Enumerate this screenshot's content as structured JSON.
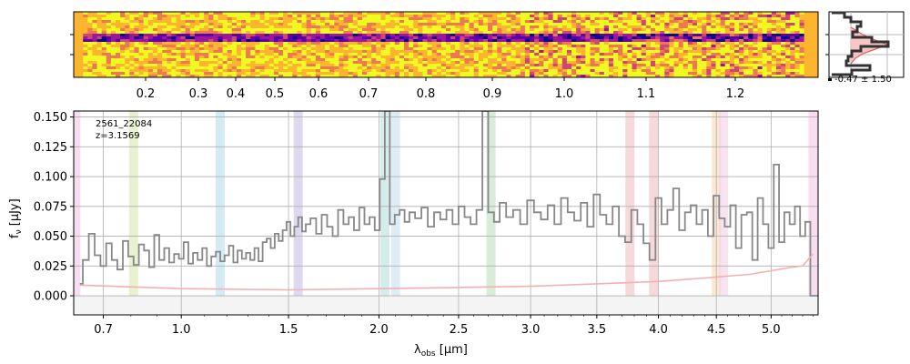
{
  "chart_data": [
    {
      "type": "heatmap",
      "panel": "2d-spectrum",
      "top_tick_labels": [
        "0.2",
        "0.3",
        "0.4",
        "0.5",
        "0.6",
        "0.7",
        "0.8",
        "0.9",
        "1.0",
        "1.1",
        "1.2"
      ],
      "colormap": "plasma",
      "trace_rows": [
        37,
        47
      ]
    },
    {
      "type": "line",
      "panel": "profile",
      "annotation": "-0.47 ± 1.50",
      "colors": {
        "profile": "#333333",
        "model": "#e06060",
        "fill": "#f6b8b8"
      }
    },
    {
      "type": "line",
      "panel": "1d-spectrum",
      "xlabel_main": "λ",
      "xlabel_sub": "obs",
      "xlabel_unit": " [μm]",
      "ylabel_main": "f",
      "ylabel_sub": "ν",
      "ylabel_unit": " [μJy]",
      "xlim": [
        0.6,
        5.45
      ],
      "ylim": [
        -0.016,
        0.155
      ],
      "xscale": "sqrt",
      "x_ticks": [
        0.7,
        1.0,
        1.5,
        2.0,
        2.5,
        3.0,
        3.5,
        4.0,
        4.5,
        5.0
      ],
      "x_tick_labels": [
        "0.7",
        "1.0",
        "1.5",
        "2.0",
        "2.5",
        "3.0",
        "3.5",
        "4.0",
        "4.5",
        "5.0"
      ],
      "y_ticks": [
        0.0,
        0.025,
        0.05,
        0.075,
        0.1,
        0.125,
        0.15
      ],
      "y_tick_labels": [
        "0.000",
        "0.025",
        "0.050",
        "0.075",
        "0.100",
        "0.125",
        "0.150"
      ],
      "annotation_id": "2561_22084",
      "annotation_z": "z=3.1569",
      "grid": true,
      "line_bands": [
        {
          "x": 0.607,
          "color": "#f2c8e8"
        },
        {
          "x": 0.81,
          "color": "#d9e8b0"
        },
        {
          "x": 1.17,
          "color": "#b8def0"
        },
        {
          "x": 1.55,
          "color": "#c8c0e8"
        },
        {
          "x": 2.035,
          "color": "#b8e0e0"
        },
        {
          "x": 2.1,
          "color": "#c8e0f0"
        },
        {
          "x": 2.72,
          "color": "#c0e0c0"
        },
        {
          "x": 3.765,
          "color": "#f0c0c0"
        },
        {
          "x": 3.96,
          "color": "#f0c0c0"
        },
        {
          "x": 4.5,
          "color": "#f8d8b8"
        },
        {
          "x": 4.565,
          "color": "#f4d0e8"
        },
        {
          "x": 5.4,
          "color": "#f2c8e8"
        }
      ],
      "series": [
        {
          "role": "flux",
          "color": "#888888",
          "x": [
            0.62,
            0.64,
            0.66,
            0.68,
            0.7,
            0.72,
            0.74,
            0.76,
            0.78,
            0.8,
            0.82,
            0.84,
            0.86,
            0.88,
            0.9,
            0.92,
            0.94,
            0.96,
            0.98,
            1.0,
            1.02,
            1.04,
            1.06,
            1.08,
            1.1,
            1.12,
            1.14,
            1.16,
            1.18,
            1.2,
            1.22,
            1.24,
            1.26,
            1.28,
            1.3,
            1.32,
            1.34,
            1.36,
            1.38,
            1.4,
            1.42,
            1.44,
            1.46,
            1.48,
            1.5,
            1.52,
            1.54,
            1.56,
            1.58,
            1.6,
            1.63,
            1.66,
            1.69,
            1.72,
            1.75,
            1.78,
            1.81,
            1.84,
            1.87,
            1.9,
            1.93,
            1.96,
            1.99,
            2.02,
            2.05,
            2.08,
            2.11,
            2.14,
            2.17,
            2.2,
            2.24,
            2.28,
            2.32,
            2.36,
            2.4,
            2.44,
            2.48,
            2.52,
            2.56,
            2.6,
            2.64,
            2.68,
            2.72,
            2.76,
            2.8,
            2.85,
            2.9,
            2.95,
            3.0,
            3.05,
            3.1,
            3.15,
            3.2,
            3.25,
            3.3,
            3.35,
            3.4,
            3.45,
            3.5,
            3.55,
            3.6,
            3.65,
            3.7,
            3.75,
            3.8,
            3.85,
            3.9,
            3.95,
            4.0,
            4.05,
            4.1,
            4.15,
            4.2,
            4.25,
            4.3,
            4.35,
            4.4,
            4.45,
            4.5,
            4.55,
            4.6,
            4.65,
            4.7,
            4.75,
            4.8,
            4.85,
            4.9,
            4.95,
            5.0,
            5.05,
            5.1,
            5.15,
            5.2,
            5.25,
            5.3,
            5.35,
            5.4,
            5.45
          ],
          "y": [
            0.01,
            0.03,
            0.052,
            0.034,
            0.025,
            0.044,
            0.03,
            0.022,
            0.046,
            0.033,
            0.026,
            0.043,
            0.038,
            0.024,
            0.051,
            0.03,
            0.04,
            0.028,
            0.035,
            0.031,
            0.045,
            0.027,
            0.036,
            0.03,
            0.04,
            0.025,
            0.033,
            0.037,
            0.029,
            0.034,
            0.042,
            0.028,
            0.038,
            0.031,
            0.036,
            0.03,
            0.04,
            0.029,
            0.045,
            0.048,
            0.04,
            0.052,
            0.046,
            0.055,
            0.062,
            0.05,
            0.058,
            0.066,
            0.054,
            0.06,
            0.065,
            0.052,
            0.068,
            0.058,
            0.05,
            0.072,
            0.06,
            0.066,
            0.055,
            0.074,
            0.06,
            0.066,
            0.055,
            0.098,
            0.155,
            0.06,
            0.068,
            0.072,
            0.062,
            0.07,
            0.065,
            0.074,
            0.058,
            0.07,
            0.064,
            0.072,
            0.06,
            0.075,
            0.066,
            0.06,
            0.072,
            0.155,
            0.07,
            0.062,
            0.078,
            0.066,
            0.072,
            0.06,
            0.08,
            0.07,
            0.064,
            0.076,
            0.06,
            0.082,
            0.07,
            0.063,
            0.078,
            0.058,
            0.085,
            0.068,
            0.06,
            0.075,
            0.05,
            0.045,
            0.072,
            0.06,
            0.044,
            0.03,
            0.082,
            0.06,
            0.072,
            0.09,
            0.055,
            0.07,
            0.076,
            0.06,
            0.072,
            0.05,
            0.084,
            0.065,
            0.058,
            0.076,
            0.04,
            0.068,
            0.07,
            0.03,
            0.082,
            0.06,
            0.04,
            0.11,
            0.045,
            0.07,
            0.06,
            0.075,
            0.05,
            0.062,
            0.0,
            0.0
          ]
        },
        {
          "role": "error",
          "color": "#f4b0b0",
          "x": [
            0.62,
            1.0,
            1.5,
            2.0,
            2.5,
            3.0,
            3.5,
            4.0,
            4.4,
            4.8,
            5.0,
            5.2,
            5.3,
            5.35,
            5.4
          ],
          "y": [
            0.009,
            0.006,
            0.005,
            0.006,
            0.007,
            0.008,
            0.01,
            0.012,
            0.015,
            0.018,
            0.021,
            0.024,
            0.025,
            0.03,
            0.035
          ]
        }
      ]
    }
  ]
}
